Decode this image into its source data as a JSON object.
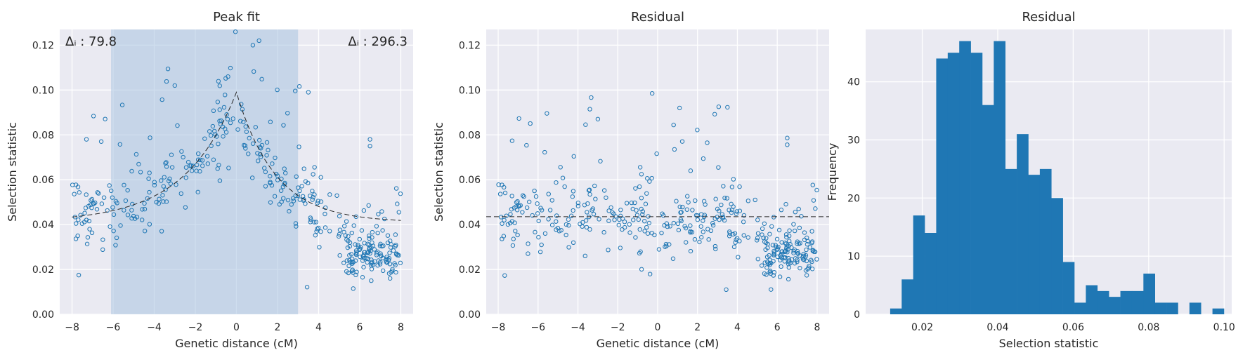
{
  "chart_data": [
    {
      "type": "scatter",
      "title": "Peak fit",
      "xlabel": "Genetic distance (cM)",
      "ylabel": "Selection statistic",
      "xlim": [
        -8.6,
        8.6
      ],
      "ylim": [
        0.0,
        0.127
      ],
      "xticks": [
        -8,
        -6,
        -4,
        -2,
        0,
        2,
        4,
        6,
        8
      ],
      "yticks": [
        0.0,
        0.02,
        0.04,
        0.06,
        0.08,
        0.1,
        0.12
      ],
      "grid": true,
      "shaded_region": [
        -6.1,
        3.0
      ],
      "shaded_color": "#a7c3e0",
      "point_color": "#1f77b4",
      "fit_line": {
        "peak_x": 0.0,
        "peak_y": 0.099,
        "baseline": 0.041,
        "left_scale": 2.5,
        "right_scale": 1.9,
        "style": "dashed"
      },
      "annotations": [
        {
          "text": "Δᵢ : 79.8",
          "position": "top-left"
        },
        {
          "text": "Δᵢ : 296.3",
          "position": "top-right"
        }
      ],
      "points_note": "approx. 420 points scattered around the fit curve; dense cluster near x=6"
    },
    {
      "type": "scatter",
      "title": "Residual",
      "xlabel": "Genetic distance (cM)",
      "ylabel": "Selection statistic",
      "xlim": [
        -8.6,
        8.6
      ],
      "ylim": [
        0.0,
        0.127
      ],
      "xticks": [
        -8,
        -6,
        -4,
        -2,
        0,
        2,
        4,
        6,
        8
      ],
      "yticks": [
        0.0,
        0.02,
        0.04,
        0.06,
        0.08,
        0.1,
        0.12
      ],
      "grid": true,
      "hline": {
        "y": 0.0435,
        "style": "dashed"
      },
      "point_color": "#1f77b4"
    },
    {
      "type": "bar",
      "subtype": "histogram",
      "title": "Residual",
      "xlabel": "Selection statistic",
      "ylabel": "Frequency",
      "xlim": [
        0.005,
        0.102
      ],
      "ylim": [
        0,
        49
      ],
      "xticks": [
        0.02,
        0.04,
        0.06,
        0.08,
        0.1
      ],
      "yticks": [
        0,
        10,
        20,
        30,
        40
      ],
      "grid": true,
      "bar_color": "#1f77b4",
      "bin_start": 0.0115,
      "bin_width": 0.00305,
      "values": [
        1,
        6,
        17,
        14,
        44,
        45,
        47,
        45,
        36,
        47,
        25,
        31,
        24,
        25,
        20,
        9,
        2,
        5,
        4,
        3,
        4,
        4,
        7,
        2,
        2,
        0,
        2,
        0,
        1
      ]
    }
  ]
}
